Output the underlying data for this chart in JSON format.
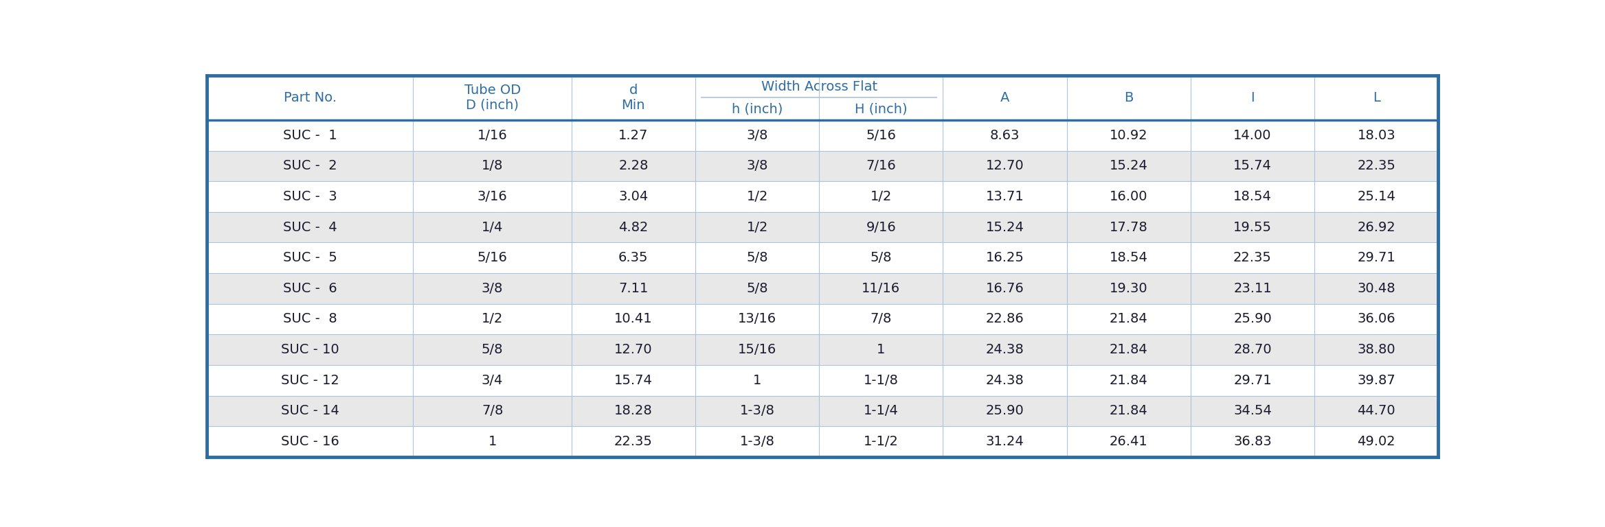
{
  "col_span_label": "Width Across Flat",
  "rows": [
    [
      "SUC -  1",
      "1/16",
      "1.27",
      "3/8",
      "5/16",
      "8.63",
      "10.92",
      "14.00",
      "18.03"
    ],
    [
      "SUC -  2",
      "1/8",
      "2.28",
      "3/8",
      "7/16",
      "12.70",
      "15.24",
      "15.74",
      "22.35"
    ],
    [
      "SUC -  3",
      "3/16",
      "3.04",
      "1/2",
      "1/2",
      "13.71",
      "16.00",
      "18.54",
      "25.14"
    ],
    [
      "SUC -  4",
      "1/4",
      "4.82",
      "1/2",
      "9/16",
      "15.24",
      "17.78",
      "19.55",
      "26.92"
    ],
    [
      "SUC -  5",
      "5/16",
      "6.35",
      "5/8",
      "5/8",
      "16.25",
      "18.54",
      "22.35",
      "29.71"
    ],
    [
      "SUC -  6",
      "3/8",
      "7.11",
      "5/8",
      "11/16",
      "16.76",
      "19.30",
      "23.11",
      "30.48"
    ],
    [
      "SUC -  8",
      "1/2",
      "10.41",
      "13/16",
      "7/8",
      "22.86",
      "21.84",
      "25.90",
      "36.06"
    ],
    [
      "SUC - 10",
      "5/8",
      "12.70",
      "15/16",
      "1",
      "24.38",
      "21.84",
      "28.70",
      "38.80"
    ],
    [
      "SUC - 12",
      "3/4",
      "15.74",
      "1",
      "1-1/8",
      "24.38",
      "21.84",
      "29.71",
      "39.87"
    ],
    [
      "SUC - 14",
      "7/8",
      "18.28",
      "1-3/8",
      "1-1/4",
      "25.90",
      "21.84",
      "34.54",
      "44.70"
    ],
    [
      "SUC - 16",
      "1",
      "22.35",
      "1-3/8",
      "1-1/2",
      "31.24",
      "26.41",
      "36.83",
      "49.02"
    ]
  ],
  "header_bg": "#ffffff",
  "header_text_color": "#2e6da4",
  "row_odd_bg": "#e8e8e8",
  "row_even_bg": "#ffffff",
  "data_text_color": "#1a1a2e",
  "border_top_color": "#2e6da4",
  "border_color": "#aac4de",
  "thick_border_color": "#2e6da4",
  "font_size": 14,
  "header_font_size": 14,
  "col_widths_raw": [
    1.5,
    1.15,
    0.9,
    0.9,
    0.9,
    0.9,
    0.9,
    0.9,
    0.9
  ]
}
